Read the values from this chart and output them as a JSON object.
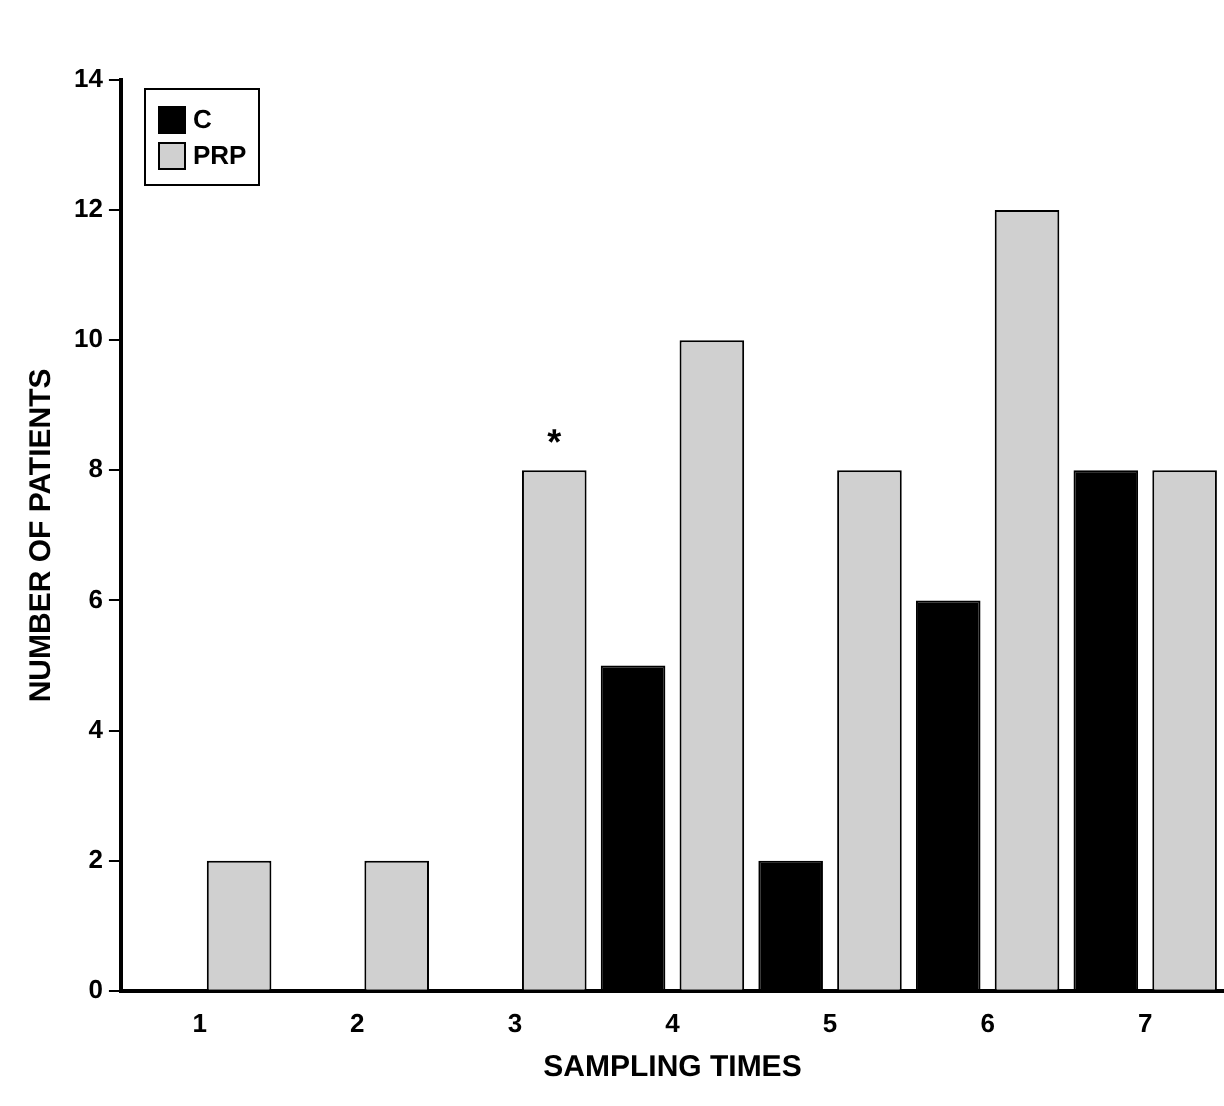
{
  "chart_data": {
    "type": "bar",
    "xlabel": "SAMPLING TIMES",
    "ylabel": "NUMBER OF PATIENTS",
    "categories": [
      "1",
      "2",
      "3",
      "4",
      "5",
      "6",
      "7"
    ],
    "series": [
      {
        "name": "C",
        "color": "#000000",
        "values": [
          0,
          0,
          0,
          5,
          2,
          6,
          8
        ]
      },
      {
        "name": "PRP",
        "color": "#d0d0d0",
        "values": [
          2,
          2,
          8,
          10,
          8,
          12,
          8
        ]
      }
    ],
    "ylim": [
      0,
      14
    ],
    "yticks": [
      0,
      2,
      4,
      6,
      8,
      10,
      12,
      14
    ],
    "grid": false,
    "legend": "top left",
    "annotations": [
      {
        "text": "*",
        "x": "3",
        "y": 8
      }
    ]
  }
}
